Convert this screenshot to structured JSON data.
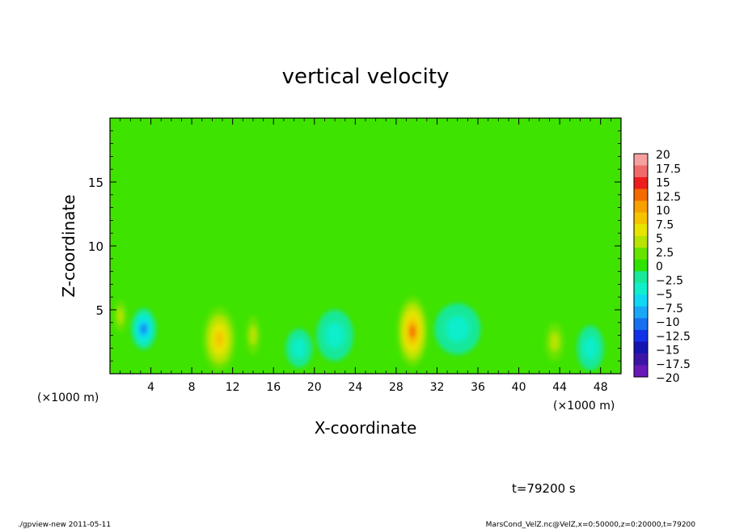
{
  "chart_data": {
    "type": "heatmap",
    "title": "vertical velocity",
    "xlabel": "X-coordinate",
    "ylabel": "Z-coordinate",
    "x_unit_note": "(×1000 m)",
    "xlim": [
      0,
      50
    ],
    "ylim": [
      0,
      20
    ],
    "x_ticks": [
      4,
      8,
      12,
      16,
      20,
      24,
      28,
      32,
      36,
      40,
      44,
      48
    ],
    "y_ticks": [
      5,
      10,
      15
    ],
    "colorbar": {
      "levels": [
        "20",
        "17.5",
        "15",
        "12.5",
        "10",
        "7.5",
        "5",
        "2.5",
        "0",
        "−2.5",
        "−5",
        "−7.5",
        "−10",
        "−12.5",
        "−15",
        "−17.5",
        "−20"
      ],
      "colors": [
        "#f7a0a0",
        "#f06a6a",
        "#ee1d1d",
        "#f26a00",
        "#f7a000",
        "#f5c400",
        "#e7e400",
        "#b7e400",
        "#66e400",
        "#2fe300",
        "#19e89a",
        "#11eecb",
        "#10d8f4",
        "#1aa8f6",
        "#1670f0",
        "#1230e6",
        "#1515b0",
        "#3c14a8",
        "#6a18b8"
      ],
      "background_level": "0"
    },
    "features": [
      {
        "x": 10.7,
        "z": 2.7,
        "w": 3.2,
        "h": 5.0,
        "v": 11,
        "label": "updraft"
      },
      {
        "x": 29.6,
        "z": 3.3,
        "w": 3.0,
        "h": 5.5,
        "v": 12,
        "label": "updraft"
      },
      {
        "x": 3.3,
        "z": 3.5,
        "w": 2.4,
        "h": 3.2,
        "v": -9,
        "label": "downdraft"
      },
      {
        "x": 18.5,
        "z": 2.0,
        "w": 2.6,
        "h": 3.0,
        "v": -6,
        "label": "downdraft"
      },
      {
        "x": 22.0,
        "z": 3.0,
        "w": 3.6,
        "h": 4.0,
        "v": -6,
        "label": "downdraft"
      },
      {
        "x": 34.0,
        "z": 3.5,
        "w": 4.5,
        "h": 4.0,
        "v": -6,
        "label": "downdraft"
      },
      {
        "x": 47.0,
        "z": 2.0,
        "w": 2.6,
        "h": 3.5,
        "v": -6,
        "label": "downdraft"
      },
      {
        "x": 43.5,
        "z": 2.5,
        "w": 1.8,
        "h": 3.0,
        "v": 5,
        "label": "updraft"
      },
      {
        "x": 1.0,
        "z": 4.5,
        "w": 1.2,
        "h": 2.5,
        "v": 4,
        "label": "updraft"
      },
      {
        "x": 14.0,
        "z": 3.0,
        "w": 1.4,
        "h": 3.0,
        "v": 3,
        "label": "updraft"
      }
    ]
  },
  "annotations": {
    "time": "t=79200 s",
    "footer_left": "./gpview-new  2011-05-11",
    "footer_right": "MarsCond_VelZ.nc@VelZ,x=0:50000,z=0:20000,t=79200"
  }
}
